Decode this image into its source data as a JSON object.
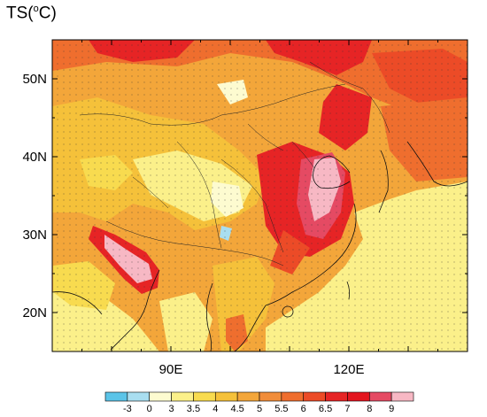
{
  "map": {
    "title": "TS(oC)",
    "title_parts": {
      "prefix": "TS(",
      "superscript": "o",
      "suffix": "C)"
    },
    "lat_labels": [
      "50N",
      "40N",
      "30N",
      "20N"
    ],
    "lon_labels": [
      "90E",
      "120E"
    ],
    "extent": {
      "lon_min": 70,
      "lon_max": 140,
      "lat_min": 15,
      "lat_max": 55
    },
    "colorbar": {
      "labels": [
        "-3",
        "0",
        "3",
        "3.5",
        "4",
        "4.5",
        "5",
        "5.5",
        "6",
        "6.5",
        "7",
        "8",
        "9"
      ],
      "colors": [
        "#5bc4e8",
        "#a9def0",
        "#fdfbd0",
        "#fbf08a",
        "#f8db4f",
        "#f5c13a",
        "#f3a63a",
        "#f18d3a",
        "#ef6e2e",
        "#ec4b27",
        "#e62425",
        "#e3151f",
        "#e54a63",
        "#f7b8c4"
      ]
    }
  }
}
